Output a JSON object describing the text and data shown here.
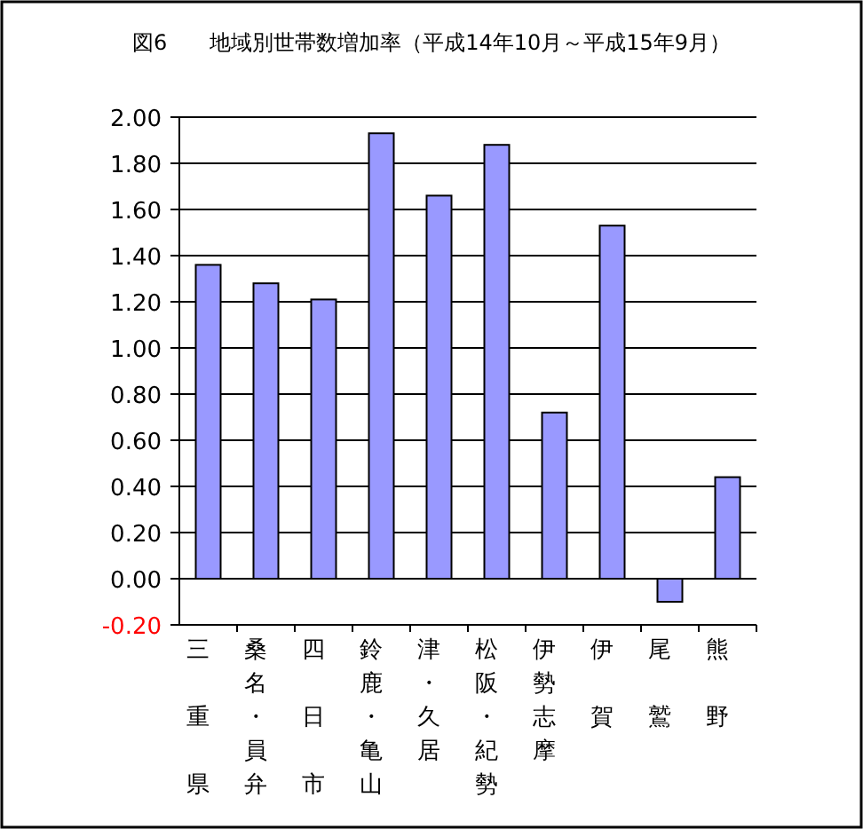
{
  "chart_data": {
    "type": "bar",
    "title": "図6　　地域別世帯数増加率（平成14年10月～平成15年9月）",
    "categories": [
      "三重県",
      "桑名・員弁",
      "四日市",
      "鈴鹿・亀山",
      "津・久居",
      "松阪・紀勢",
      "伊勢志摩",
      "伊賀",
      "尾鷲",
      "熊野"
    ],
    "values": [
      1.36,
      1.28,
      1.21,
      1.93,
      1.66,
      1.88,
      0.72,
      1.53,
      -0.1,
      0.44
    ],
    "color": "#9999ff",
    "ylim": [
      -0.2,
      2.0
    ],
    "yticks": [
      {
        "value": -0.2,
        "label": "-0.20"
      },
      {
        "value": 0,
        "label": "0.00"
      },
      {
        "value": 0.2,
        "label": "0.20"
      },
      {
        "value": 0.4,
        "label": "0.40"
      },
      {
        "value": 0.6,
        "label": "0.60"
      },
      {
        "value": 0.8,
        "label": "0.80"
      },
      {
        "value": 1.0,
        "label": "1.00"
      },
      {
        "value": 1.2,
        "label": "1.20"
      },
      {
        "value": 1.4,
        "label": "1.40"
      },
      {
        "value": 1.6,
        "label": "1.60"
      },
      {
        "value": 1.8,
        "label": "1.80"
      },
      {
        "value": 2.0,
        "label": "2.00"
      }
    ],
    "grid": "y"
  }
}
